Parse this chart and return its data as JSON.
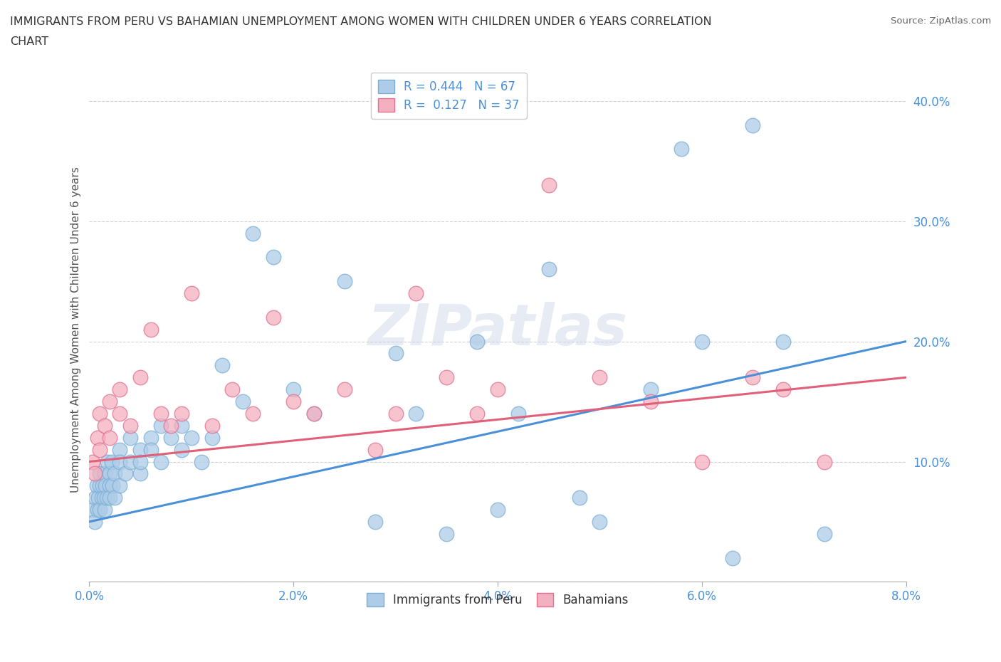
{
  "title_line1": "IMMIGRANTS FROM PERU VS BAHAMIAN UNEMPLOYMENT AMONG WOMEN WITH CHILDREN UNDER 6 YEARS CORRELATION",
  "title_line2": "CHART",
  "source": "Source: ZipAtlas.com",
  "ylabel": "Unemployment Among Women with Children Under 6 years",
  "xlim": [
    0.0,
    0.08
  ],
  "ylim": [
    0.0,
    0.42
  ],
  "yticks": [
    0.0,
    0.1,
    0.2,
    0.3,
    0.4
  ],
  "ytick_labels": [
    "",
    "10.0%",
    "20.0%",
    "30.0%",
    "40.0%"
  ],
  "xticks": [
    0.0,
    0.02,
    0.04,
    0.06,
    0.08
  ],
  "xtick_labels": [
    "0.0%",
    "2.0%",
    "4.0%",
    "6.0%",
    "8.0%"
  ],
  "legend_R1": "0.444",
  "legend_N1": "67",
  "legend_R2": "0.127",
  "legend_N2": "37",
  "color_peru": "#aecce8",
  "color_peru_edge": "#7aafd4",
  "color_bahamas": "#f4afc0",
  "color_bahamas_edge": "#e07090",
  "color_line_peru": "#4a90d9",
  "color_line_bahamas": "#e0607a",
  "background_color": "#ffffff",
  "watermark": "ZIPatlas",
  "peru_x": [
    0.0003,
    0.0005,
    0.0006,
    0.0007,
    0.0008,
    0.0009,
    0.001,
    0.001,
    0.001,
    0.0012,
    0.0013,
    0.0014,
    0.0015,
    0.0015,
    0.0016,
    0.0017,
    0.0018,
    0.002,
    0.002,
    0.002,
    0.0022,
    0.0023,
    0.0025,
    0.0025,
    0.003,
    0.003,
    0.003,
    0.0035,
    0.004,
    0.004,
    0.005,
    0.005,
    0.005,
    0.006,
    0.006,
    0.007,
    0.007,
    0.008,
    0.009,
    0.009,
    0.01,
    0.011,
    0.012,
    0.013,
    0.015,
    0.016,
    0.018,
    0.02,
    0.022,
    0.025,
    0.028,
    0.03,
    0.032,
    0.035,
    0.038,
    0.04,
    0.042,
    0.045,
    0.048,
    0.05,
    0.055,
    0.058,
    0.06,
    0.063,
    0.065,
    0.068,
    0.072
  ],
  "peru_y": [
    0.06,
    0.05,
    0.07,
    0.08,
    0.06,
    0.07,
    0.08,
    0.06,
    0.09,
    0.07,
    0.08,
    0.07,
    0.09,
    0.06,
    0.08,
    0.07,
    0.1,
    0.09,
    0.08,
    0.07,
    0.1,
    0.08,
    0.09,
    0.07,
    0.11,
    0.1,
    0.08,
    0.09,
    0.1,
    0.12,
    0.11,
    0.09,
    0.1,
    0.12,
    0.11,
    0.13,
    0.1,
    0.12,
    0.11,
    0.13,
    0.12,
    0.1,
    0.12,
    0.18,
    0.15,
    0.29,
    0.27,
    0.16,
    0.14,
    0.25,
    0.05,
    0.19,
    0.14,
    0.04,
    0.2,
    0.06,
    0.14,
    0.26,
    0.07,
    0.05,
    0.16,
    0.36,
    0.2,
    0.02,
    0.38,
    0.2,
    0.04
  ],
  "bahamas_x": [
    0.0003,
    0.0005,
    0.0008,
    0.001,
    0.001,
    0.0015,
    0.002,
    0.002,
    0.003,
    0.003,
    0.004,
    0.005,
    0.006,
    0.007,
    0.008,
    0.009,
    0.01,
    0.012,
    0.014,
    0.016,
    0.018,
    0.02,
    0.022,
    0.025,
    0.028,
    0.03,
    0.032,
    0.035,
    0.038,
    0.04,
    0.045,
    0.05,
    0.055,
    0.06,
    0.065,
    0.068,
    0.072
  ],
  "bahamas_y": [
    0.1,
    0.09,
    0.12,
    0.11,
    0.14,
    0.13,
    0.15,
    0.12,
    0.14,
    0.16,
    0.13,
    0.17,
    0.21,
    0.14,
    0.13,
    0.14,
    0.24,
    0.13,
    0.16,
    0.14,
    0.22,
    0.15,
    0.14,
    0.16,
    0.11,
    0.14,
    0.24,
    0.17,
    0.14,
    0.16,
    0.33,
    0.17,
    0.15,
    0.1,
    0.17,
    0.16,
    0.1
  ],
  "line_peru_x0": 0.0,
  "line_peru_y0": 0.05,
  "line_peru_x1": 0.08,
  "line_peru_y1": 0.2,
  "line_bahamas_x0": 0.0,
  "line_bahamas_y0": 0.1,
  "line_bahamas_x1": 0.08,
  "line_bahamas_y1": 0.17
}
